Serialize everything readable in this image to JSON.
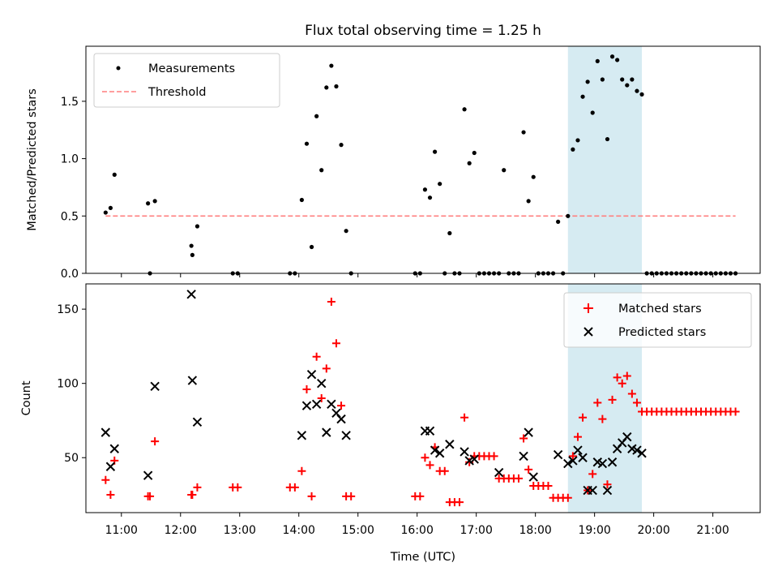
{
  "chart_data": [
    {
      "type": "scatter",
      "title": "Flux total observing time = 1.25 h",
      "xlabel": "",
      "ylabel": "Matched/Predicted stars",
      "xlim": [
        "10:24",
        "21:48"
      ],
      "ylim": [
        0,
        1.98
      ],
      "yticks": [
        0.0,
        0.5,
        1.0,
        1.5
      ],
      "ytick_labels": [
        "0.0",
        "0.5",
        "1.0",
        "1.5"
      ],
      "legend_position": "upper left",
      "highlight_span": {
        "start": "18:33",
        "end": "19:48",
        "color": "#add8e6"
      },
      "series": [
        {
          "name": "Measurements",
          "marker": "dot",
          "color": "#000000",
          "points": [
            [
              "10:44",
              0.53
            ],
            [
              "10:49",
              0.57
            ],
            [
              "10:53",
              0.86
            ],
            [
              "11:27",
              0.61
            ],
            [
              "11:29",
              0.0
            ],
            [
              "11:34",
              0.63
            ],
            [
              "12:11",
              0.24
            ],
            [
              "12:12",
              0.16
            ],
            [
              "12:17",
              0.41
            ],
            [
              "12:53",
              0.0
            ],
            [
              "12:58",
              0.0
            ],
            [
              "13:51",
              0.0
            ],
            [
              "13:56",
              0.0
            ],
            [
              "14:03",
              0.64
            ],
            [
              "14:08",
              1.13
            ],
            [
              "14:13",
              0.23
            ],
            [
              "14:18",
              1.37
            ],
            [
              "14:23",
              0.9
            ],
            [
              "14:28",
              1.62
            ],
            [
              "14:33",
              1.81
            ],
            [
              "14:38",
              1.63
            ],
            [
              "14:43",
              1.12
            ],
            [
              "14:48",
              0.37
            ],
            [
              "14:53",
              0.0
            ],
            [
              "15:58",
              0.0
            ],
            [
              "16:03",
              0.0
            ],
            [
              "16:08",
              0.73
            ],
            [
              "16:13",
              0.66
            ],
            [
              "16:18",
              1.06
            ],
            [
              "16:23",
              0.78
            ],
            [
              "16:28",
              0.0
            ],
            [
              "16:33",
              0.35
            ],
            [
              "16:38",
              0.0
            ],
            [
              "16:43",
              0.0
            ],
            [
              "16:48",
              1.43
            ],
            [
              "16:53",
              0.96
            ],
            [
              "16:58",
              1.05
            ],
            [
              "17:03",
              0.0
            ],
            [
              "17:08",
              0.0
            ],
            [
              "17:13",
              0.0
            ],
            [
              "17:18",
              0.0
            ],
            [
              "17:23",
              0.0
            ],
            [
              "17:28",
              0.9
            ],
            [
              "17:33",
              0.0
            ],
            [
              "17:38",
              0.0
            ],
            [
              "17:43",
              0.0
            ],
            [
              "17:48",
              1.23
            ],
            [
              "17:53",
              0.63
            ],
            [
              "17:58",
              0.84
            ],
            [
              "18:03",
              0.0
            ],
            [
              "18:08",
              0.0
            ],
            [
              "18:13",
              0.0
            ],
            [
              "18:18",
              0.0
            ],
            [
              "18:23",
              0.45
            ],
            [
              "18:28",
              0.0
            ],
            [
              "18:33",
              0.5
            ],
            [
              "18:38",
              1.08
            ],
            [
              "18:43",
              1.16
            ],
            [
              "18:48",
              1.54
            ],
            [
              "18:53",
              1.67
            ],
            [
              "18:58",
              1.4
            ],
            [
              "19:03",
              1.85
            ],
            [
              "19:08",
              1.69
            ],
            [
              "19:13",
              1.17
            ],
            [
              "19:18",
              1.89
            ],
            [
              "19:23",
              1.86
            ],
            [
              "19:28",
              1.69
            ],
            [
              "19:33",
              1.64
            ],
            [
              "19:38",
              1.69
            ],
            [
              "19:43",
              1.59
            ],
            [
              "19:48",
              1.56
            ],
            [
              "19:53",
              0.0
            ],
            [
              "19:58",
              0.0
            ],
            [
              "20:03",
              0.0
            ],
            [
              "20:08",
              0.0
            ],
            [
              "20:13",
              0.0
            ],
            [
              "20:18",
              0.0
            ],
            [
              "20:23",
              0.0
            ],
            [
              "20:28",
              0.0
            ],
            [
              "20:33",
              0.0
            ],
            [
              "20:38",
              0.0
            ],
            [
              "20:43",
              0.0
            ],
            [
              "20:48",
              0.0
            ],
            [
              "20:53",
              0.0
            ],
            [
              "20:58",
              0.0
            ],
            [
              "21:03",
              0.0
            ],
            [
              "21:08",
              0.0
            ],
            [
              "21:13",
              0.0
            ],
            [
              "21:18",
              0.0
            ],
            [
              "21:23",
              0.0
            ]
          ]
        },
        {
          "name": "Threshold",
          "line_style": "dashed",
          "color": "#ff7f7f",
          "x": [
            "10:44",
            "21:23"
          ],
          "y": [
            0.5,
            0.5
          ]
        }
      ]
    },
    {
      "type": "scatter",
      "title": "",
      "xlabel": "Time (UTC)",
      "ylabel": "Count",
      "xlim": [
        "10:24",
        "21:48"
      ],
      "ylim": [
        13,
        167
      ],
      "xticks": [
        "11:00",
        "12:00",
        "13:00",
        "14:00",
        "15:00",
        "16:00",
        "17:00",
        "18:00",
        "19:00",
        "20:00",
        "21:00"
      ],
      "yticks": [
        50,
        100,
        150
      ],
      "ytick_labels": [
        "50",
        "100",
        "150"
      ],
      "legend_position": "upper right",
      "highlight_span": {
        "start": "18:33",
        "end": "19:48",
        "color": "#add8e6"
      },
      "series": [
        {
          "name": "Matched stars",
          "marker": "plus",
          "color": "#ff0000",
          "points": [
            [
              "10:44",
              35
            ],
            [
              "10:49",
              25
            ],
            [
              "10:53",
              48
            ],
            [
              "11:27",
              24
            ],
            [
              "11:29",
              24
            ],
            [
              "11:34",
              61
            ],
            [
              "12:11",
              25
            ],
            [
              "12:12",
              25
            ],
            [
              "12:17",
              30
            ],
            [
              "12:53",
              30
            ],
            [
              "12:58",
              30
            ],
            [
              "13:51",
              30
            ],
            [
              "13:56",
              30
            ],
            [
              "14:03",
              41
            ],
            [
              "14:08",
              96
            ],
            [
              "14:13",
              24
            ],
            [
              "14:18",
              118
            ],
            [
              "14:23",
              90
            ],
            [
              "14:28",
              110
            ],
            [
              "14:33",
              155
            ],
            [
              "14:38",
              127
            ],
            [
              "14:43",
              85
            ],
            [
              "14:48",
              24
            ],
            [
              "14:53",
              24
            ],
            [
              "15:58",
              24
            ],
            [
              "16:03",
              24
            ],
            [
              "16:08",
              50
            ],
            [
              "16:13",
              45
            ],
            [
              "16:18",
              57
            ],
            [
              "16:23",
              41
            ],
            [
              "16:28",
              41
            ],
            [
              "16:33",
              20
            ],
            [
              "16:38",
              20
            ],
            [
              "16:43",
              20
            ],
            [
              "16:48",
              77
            ],
            [
              "16:53",
              47
            ],
            [
              "16:58",
              51
            ],
            [
              "17:03",
              51
            ],
            [
              "17:08",
              51
            ],
            [
              "17:13",
              51
            ],
            [
              "17:18",
              51
            ],
            [
              "17:23",
              36
            ],
            [
              "17:28",
              36
            ],
            [
              "17:33",
              36
            ],
            [
              "17:38",
              36
            ],
            [
              "17:43",
              36
            ],
            [
              "17:48",
              63
            ],
            [
              "17:53",
              42
            ],
            [
              "17:58",
              31
            ],
            [
              "18:03",
              31
            ],
            [
              "18:08",
              31
            ],
            [
              "18:13",
              31
            ],
            [
              "18:18",
              23
            ],
            [
              "18:23",
              23
            ],
            [
              "18:28",
              23
            ],
            [
              "18:33",
              23
            ],
            [
              "18:38",
              51
            ],
            [
              "18:43",
              64
            ],
            [
              "18:48",
              77
            ],
            [
              "18:53",
              28
            ],
            [
              "18:58",
              39
            ],
            [
              "19:03",
              87
            ],
            [
              "19:08",
              76
            ],
            [
              "19:13",
              32
            ],
            [
              "19:18",
              89
            ],
            [
              "19:23",
              104
            ],
            [
              "19:28",
              100
            ],
            [
              "19:33",
              105
            ],
            [
              "19:38",
              93
            ],
            [
              "19:43",
              87
            ],
            [
              "19:48",
              81
            ],
            [
              "19:53",
              81
            ],
            [
              "19:58",
              81
            ],
            [
              "20:03",
              81
            ],
            [
              "20:08",
              81
            ],
            [
              "20:13",
              81
            ],
            [
              "20:18",
              81
            ],
            [
              "20:23",
              81
            ],
            [
              "20:28",
              81
            ],
            [
              "20:33",
              81
            ],
            [
              "20:38",
              81
            ],
            [
              "20:43",
              81
            ],
            [
              "20:48",
              81
            ],
            [
              "20:53",
              81
            ],
            [
              "20:58",
              81
            ],
            [
              "21:03",
              81
            ],
            [
              "21:08",
              81
            ],
            [
              "21:13",
              81
            ],
            [
              "21:18",
              81
            ],
            [
              "21:23",
              81
            ]
          ]
        },
        {
          "name": "Predicted stars",
          "marker": "x",
          "color": "#000000",
          "points": [
            [
              "10:44",
              67
            ],
            [
              "10:49",
              44
            ],
            [
              "10:53",
              56
            ],
            [
              "11:27",
              38
            ],
            [
              "11:34",
              98
            ],
            [
              "12:11",
              160
            ],
            [
              "12:12",
              102
            ],
            [
              "12:17",
              74
            ],
            [
              "14:03",
              65
            ],
            [
              "14:08",
              85
            ],
            [
              "14:13",
              106
            ],
            [
              "14:18",
              86
            ],
            [
              "14:23",
              100
            ],
            [
              "14:28",
              67
            ],
            [
              "14:33",
              86
            ],
            [
              "14:38",
              80
            ],
            [
              "14:43",
              76
            ],
            [
              "14:48",
              65
            ],
            [
              "16:08",
              68
            ],
            [
              "16:13",
              68
            ],
            [
              "16:18",
              55
            ],
            [
              "16:23",
              53
            ],
            [
              "16:33",
              59
            ],
            [
              "16:48",
              54
            ],
            [
              "16:53",
              48
            ],
            [
              "16:58",
              49
            ],
            [
              "17:23",
              40
            ],
            [
              "17:48",
              51
            ],
            [
              "17:53",
              67
            ],
            [
              "17:58",
              37
            ],
            [
              "18:23",
              52
            ],
            [
              "18:33",
              46
            ],
            [
              "18:38",
              48
            ],
            [
              "18:43",
              55
            ],
            [
              "18:48",
              50
            ],
            [
              "18:53",
              28
            ],
            [
              "18:58",
              28
            ],
            [
              "19:03",
              47
            ],
            [
              "19:08",
              46
            ],
            [
              "19:13",
              28
            ],
            [
              "19:18",
              47
            ],
            [
              "19:23",
              56
            ],
            [
              "19:28",
              60
            ],
            [
              "19:33",
              64
            ],
            [
              "19:38",
              56
            ],
            [
              "19:43",
              55
            ],
            [
              "19:48",
              53
            ]
          ]
        }
      ]
    }
  ]
}
